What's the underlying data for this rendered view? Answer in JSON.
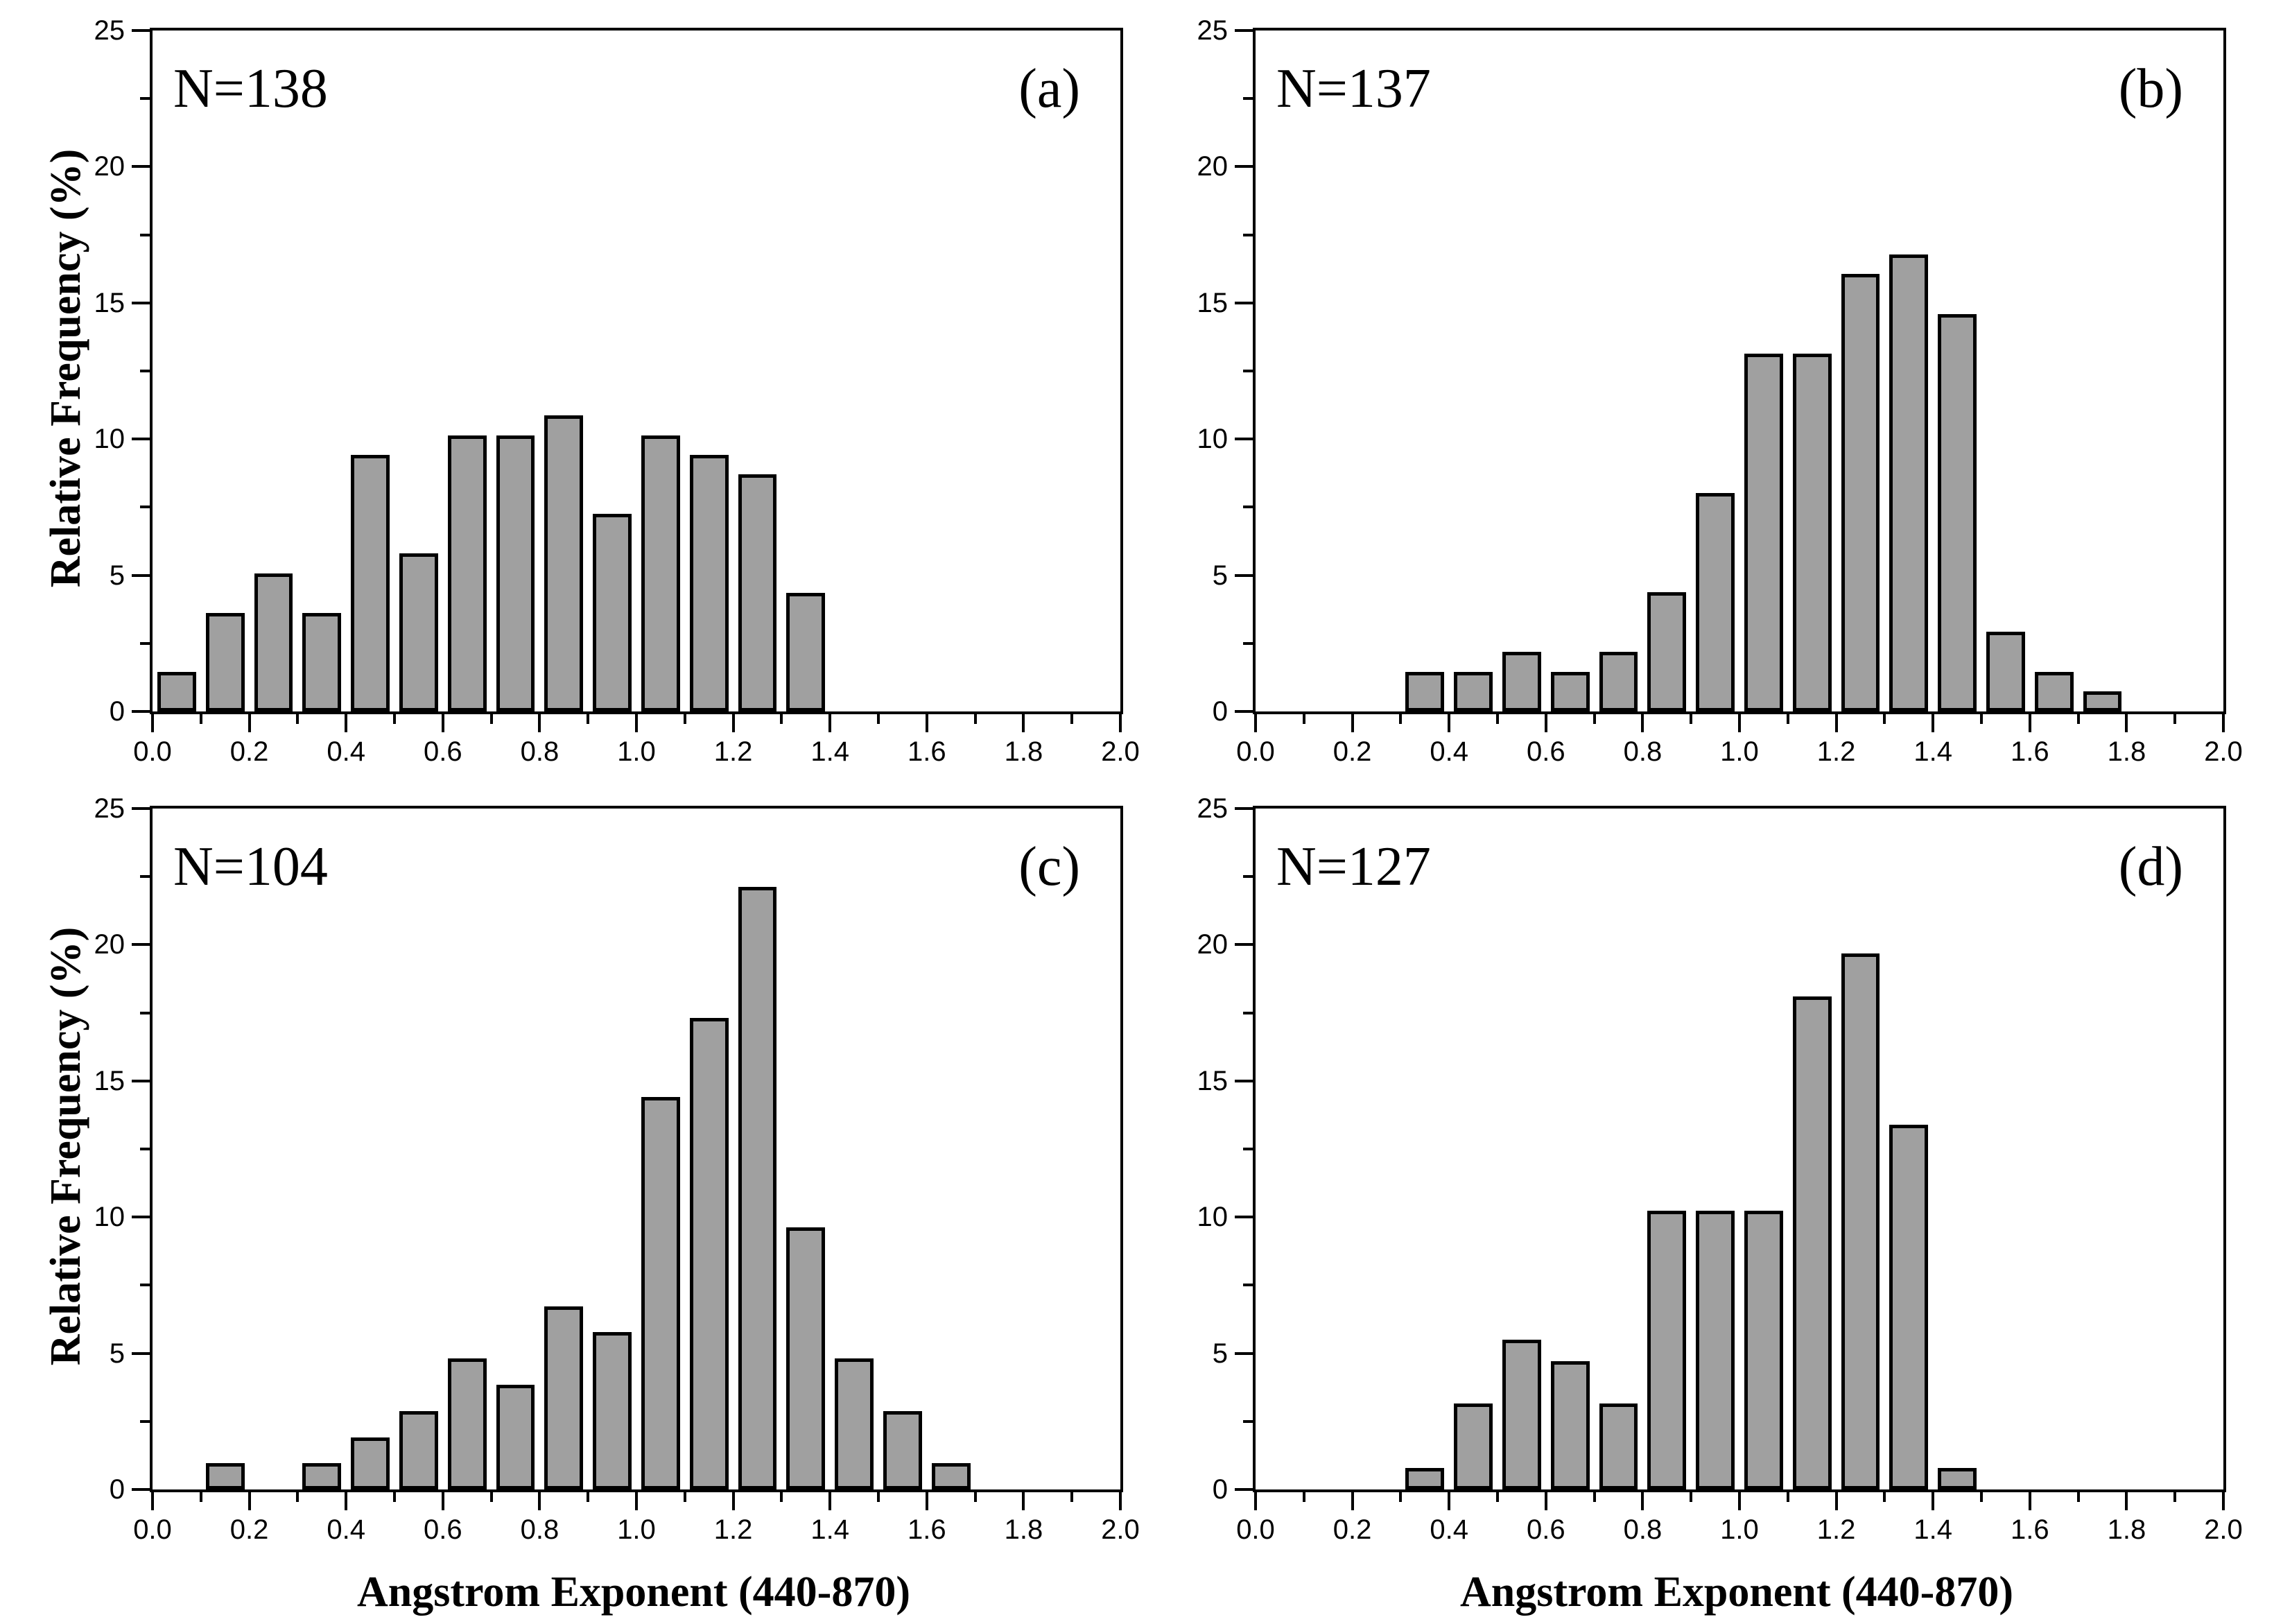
{
  "figure": {
    "background": "#FFFFFF",
    "bar_fill_color": "#A0A0A0",
    "bar_edge_color": "#000000",
    "axis_color": "#000000",
    "xlabel": "Angstrom Exponent (440-870)",
    "ylabel": "Relative Frequency (%)",
    "x_tick_labels": [
      "0.0",
      "0.2",
      "0.4",
      "0.6",
      "0.8",
      "1.0",
      "1.2",
      "1.4",
      "1.6",
      "1.8",
      "2.0"
    ],
    "y_tick_labels": [
      "0",
      "5",
      "10",
      "15",
      "20",
      "25"
    ]
  },
  "chart_data": [
    {
      "type": "bar",
      "panel_letter": "(a)",
      "n_label": "N=138",
      "xlabel": "Angstrom Exponent (440-870)",
      "ylabel": "Relative Frequency (%)",
      "xlim": [
        0.0,
        2.0
      ],
      "ylim": [
        0,
        25
      ],
      "x_major_tick_step": 0.2,
      "x_minor_tick_step": 0.1,
      "y_major_tick_step": 5,
      "y_minor_tick_step": 2.5,
      "grid": false,
      "show_xlabel": false,
      "show_ylabel": true,
      "bin_width": 0.1,
      "bins": [
        {
          "start": 0.0,
          "value": 1.45
        },
        {
          "start": 0.1,
          "value": 3.62
        },
        {
          "start": 0.2,
          "value": 5.07
        },
        {
          "start": 0.3,
          "value": 3.62
        },
        {
          "start": 0.4,
          "value": 9.42
        },
        {
          "start": 0.5,
          "value": 5.8
        },
        {
          "start": 0.6,
          "value": 10.14
        },
        {
          "start": 0.7,
          "value": 10.14
        },
        {
          "start": 0.8,
          "value": 10.87
        },
        {
          "start": 0.9,
          "value": 7.25
        },
        {
          "start": 1.0,
          "value": 10.14
        },
        {
          "start": 1.1,
          "value": 9.42
        },
        {
          "start": 1.2,
          "value": 8.7
        },
        {
          "start": 1.3,
          "value": 4.35
        }
      ]
    },
    {
      "type": "bar",
      "panel_letter": "(b)",
      "n_label": "N=137",
      "xlabel": "Angstrom Exponent (440-870)",
      "ylabel": "Relative Frequency (%)",
      "xlim": [
        0.0,
        2.0
      ],
      "ylim": [
        0,
        25
      ],
      "x_major_tick_step": 0.2,
      "x_minor_tick_step": 0.1,
      "y_major_tick_step": 5,
      "y_minor_tick_step": 2.5,
      "grid": false,
      "show_xlabel": false,
      "show_ylabel": false,
      "bin_width": 0.1,
      "bins": [
        {
          "start": 0.3,
          "value": 1.46
        },
        {
          "start": 0.4,
          "value": 1.46
        },
        {
          "start": 0.5,
          "value": 2.19
        },
        {
          "start": 0.6,
          "value": 1.46
        },
        {
          "start": 0.7,
          "value": 2.19
        },
        {
          "start": 0.8,
          "value": 4.38
        },
        {
          "start": 0.9,
          "value": 8.03
        },
        {
          "start": 1.0,
          "value": 13.14
        },
        {
          "start": 1.1,
          "value": 13.14
        },
        {
          "start": 1.2,
          "value": 16.06
        },
        {
          "start": 1.3,
          "value": 16.79
        },
        {
          "start": 1.4,
          "value": 14.6
        },
        {
          "start": 1.5,
          "value": 2.92
        },
        {
          "start": 1.6,
          "value": 1.46
        },
        {
          "start": 1.7,
          "value": 0.73
        }
      ]
    },
    {
      "type": "bar",
      "panel_letter": "(c)",
      "n_label": "N=104",
      "xlabel": "Angstrom Exponent (440-870)",
      "ylabel": "Relative Frequency (%)",
      "xlim": [
        0.0,
        2.0
      ],
      "ylim": [
        0,
        25
      ],
      "x_major_tick_step": 0.2,
      "x_minor_tick_step": 0.1,
      "y_major_tick_step": 5,
      "y_minor_tick_step": 2.5,
      "grid": false,
      "show_xlabel": true,
      "show_ylabel": true,
      "bin_width": 0.1,
      "bins": [
        {
          "start": 0.1,
          "value": 0.96
        },
        {
          "start": 0.3,
          "value": 0.96
        },
        {
          "start": 0.4,
          "value": 1.92
        },
        {
          "start": 0.5,
          "value": 2.88
        },
        {
          "start": 0.6,
          "value": 4.81
        },
        {
          "start": 0.7,
          "value": 3.85
        },
        {
          "start": 0.8,
          "value": 6.73
        },
        {
          "start": 0.9,
          "value": 5.77
        },
        {
          "start": 1.0,
          "value": 14.42
        },
        {
          "start": 1.1,
          "value": 17.31
        },
        {
          "start": 1.2,
          "value": 22.12
        },
        {
          "start": 1.3,
          "value": 9.62
        },
        {
          "start": 1.4,
          "value": 4.81
        },
        {
          "start": 1.5,
          "value": 2.88
        },
        {
          "start": 1.6,
          "value": 0.96
        }
      ]
    },
    {
      "type": "bar",
      "panel_letter": "(d)",
      "n_label": "N=127",
      "xlabel": "Angstrom Exponent (440-870)",
      "ylabel": "Relative Frequency (%)",
      "xlim": [
        0.0,
        2.0
      ],
      "ylim": [
        0,
        25
      ],
      "x_major_tick_step": 0.2,
      "x_minor_tick_step": 0.1,
      "y_major_tick_step": 5,
      "y_minor_tick_step": 2.5,
      "grid": false,
      "show_xlabel": true,
      "show_ylabel": false,
      "bin_width": 0.1,
      "bins": [
        {
          "start": 0.3,
          "value": 0.79
        },
        {
          "start": 0.4,
          "value": 3.15
        },
        {
          "start": 0.5,
          "value": 5.51
        },
        {
          "start": 0.6,
          "value": 4.72
        },
        {
          "start": 0.7,
          "value": 3.15
        },
        {
          "start": 0.8,
          "value": 10.24
        },
        {
          "start": 0.9,
          "value": 10.24
        },
        {
          "start": 1.0,
          "value": 10.24
        },
        {
          "start": 1.1,
          "value": 18.11
        },
        {
          "start": 1.2,
          "value": 19.69
        },
        {
          "start": 1.3,
          "value": 13.39
        },
        {
          "start": 1.4,
          "value": 0.79
        }
      ]
    }
  ]
}
